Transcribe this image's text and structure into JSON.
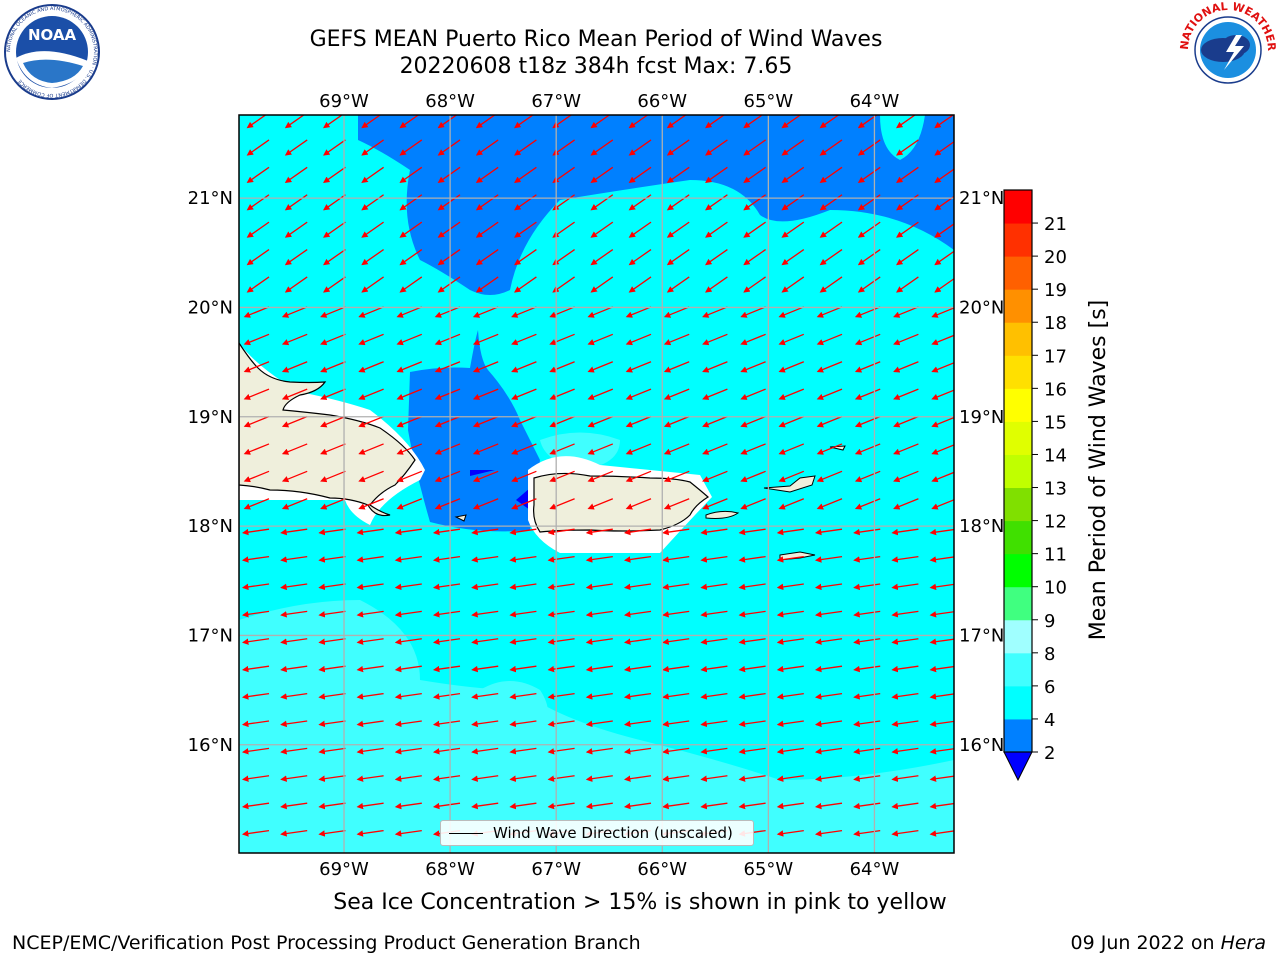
{
  "title": {
    "line1": "GEFS MEAN Puerto Rico Mean Period of Wind Waves",
    "line2": "20220608 t18z 384h fcst   Max: 7.65"
  },
  "logos": {
    "left": {
      "icon": "noaa-logo",
      "text": "NOAA",
      "ring_text": "NATIONAL OCEANIC AND ATMOSPHERIC ADMINISTRATION · U.S. DEPARTMENT OF COMMERCE"
    },
    "right": {
      "icon": "nws-logo",
      "ring_text": "NATIONAL WEATHER SERVICE"
    }
  },
  "map": {
    "lon_ticks": [
      "69°W",
      "68°W",
      "67°W",
      "66°W",
      "65°W",
      "64°W"
    ],
    "lat_ticks": [
      "21°N",
      "20°N",
      "19°N",
      "18°N",
      "17°N",
      "16°N"
    ],
    "extent": {
      "lon": [
        -69.99,
        -63.25
      ],
      "lat": [
        15.01,
        21.76
      ]
    },
    "arrow_direction": "toward west-southwest",
    "legend_label": "Wind Wave Direction (unscaled)",
    "colors": {
      "band_2_4": "#0080ff",
      "band_4_6": "#00ffff",
      "band_6_8": "#40ffff",
      "band_lt_2": "#0000ff",
      "land": "#efefdc",
      "arrow": "#ff0000",
      "grid": "#b0b0b0"
    }
  },
  "colorbar": {
    "label": "Mean Period of Wind Waves [s]",
    "ticks": [
      "2",
      "4",
      "6",
      "8",
      "9",
      "10",
      "11",
      "12",
      "13",
      "14",
      "15",
      "16",
      "17",
      "18",
      "19",
      "20",
      "21"
    ],
    "colors": [
      "#0080ff",
      "#00ffff",
      "#40ffff",
      "#a0ffff",
      "#40ff80",
      "#00ff00",
      "#40e000",
      "#80e000",
      "#c0ff00",
      "#e0ff00",
      "#ffff00",
      "#ffe000",
      "#ffc000",
      "#ff9000",
      "#ff6000",
      "#ff3000",
      "#ff0000"
    ],
    "under_color": "#0000ff"
  },
  "caption": "Sea Ice Concentration > 15% is shown in pink to yellow",
  "footer": {
    "left": "NCEP/EMC/Verification Post Processing Product Generation Branch",
    "right_date": "09 Jun 2022 on",
    "right_host": "Hera"
  }
}
